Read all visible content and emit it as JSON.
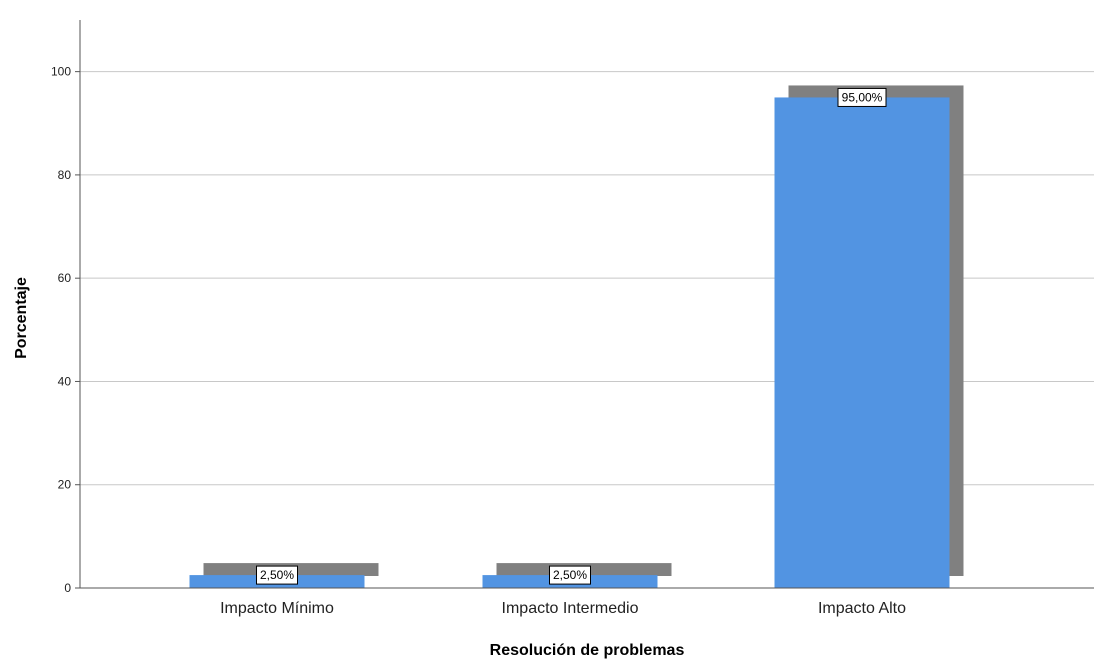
{
  "chart_data": {
    "type": "bar",
    "categories": [
      "Impacto Mínimo",
      "Impacto Intermedio",
      "Impacto Alto"
    ],
    "values": [
      2.5,
      2.5,
      95.0
    ],
    "data_labels": [
      "2,50%",
      "2,50%",
      "95,00%"
    ],
    "title": "",
    "xlabel": "Resolución de problemas",
    "ylabel": "Porcentaje",
    "ylim": [
      0,
      110
    ],
    "yticks": [
      0,
      20,
      40,
      60,
      80,
      100
    ],
    "ytick_labels": [
      "0",
      "20",
      "40",
      "60",
      "80",
      "100"
    ],
    "grid": "horizontal",
    "legend": "none",
    "colors": {
      "bar": "#5294e2",
      "shadow": "#808080",
      "grid": "#c8c8c8",
      "axis": "#555555"
    }
  }
}
